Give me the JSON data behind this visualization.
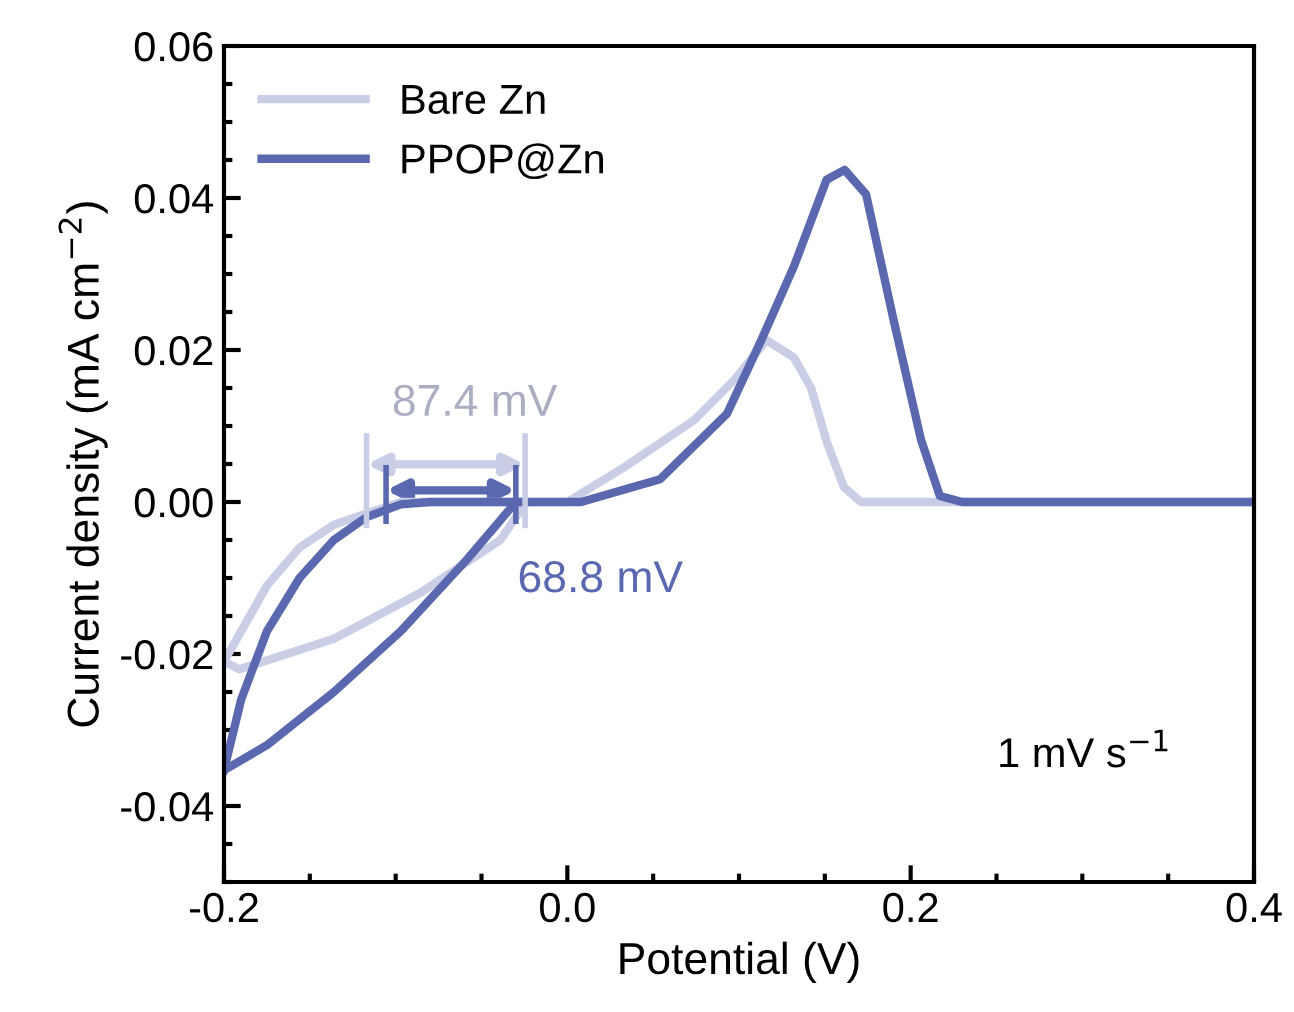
{
  "chart_data": {
    "type": "line",
    "xlabel": "Potential (V)",
    "ylabel": "Current density (mA cm$^{−2}$)",
    "xlim": [
      -0.2,
      0.4
    ],
    "xticks": [
      -0.2,
      {
        "value": 0,
        "label": "0.0"
      },
      0.2,
      0.4
    ],
    "ylim": [
      -0.05,
      0.06
    ],
    "yticks": [
      -0.04,
      -0.02,
      {
        "value": 0,
        "label": "0.00"
      },
      0.02,
      0.04,
      0.06
    ],
    "grid": false,
    "legend": "top left",
    "marker": "none",
    "line_style": "solid",
    "series": [
      {
        "name": "Bare Zn",
        "color": "#c9cde6",
        "x": [
          -0.2,
          -0.175,
          -0.156,
          -0.136,
          -0.117,
          -0.097,
          -0.05,
          0.0,
          0.034,
          0.074,
          0.097,
          0.116,
          0.132,
          0.142,
          0.151,
          0.161,
          0.171,
          0.25,
          0.4
        ],
        "values": [
          -0.021,
          -0.011,
          -0.006,
          -0.003,
          -0.0015,
          0.0,
          0.0,
          0.0,
          0.0047,
          0.0108,
          0.016,
          0.0213,
          0.019,
          0.015,
          0.008,
          0.002,
          0.0,
          0.0,
          0.0
        ]
      },
      {
        "color": "#c9cde6",
        "x": [
          -0.2,
          -0.191,
          -0.136,
          -0.086,
          -0.039,
          -0.024
        ],
        "values": [
          -0.021,
          -0.022,
          -0.018,
          -0.012,
          -0.005,
          0.0
        ]
      },
      {
        "name": "PPOP@Zn",
        "color": "#5a68b0",
        "x": [
          -0.2,
          -0.19,
          -0.175,
          -0.156,
          -0.136,
          -0.117,
          -0.097,
          -0.08,
          0.008,
          0.054,
          0.093,
          0.113,
          0.132,
          0.151,
          0.1615,
          0.174,
          0.19,
          0.206,
          0.217,
          0.23,
          0.4
        ],
        "values": [
          -0.0353,
          -0.026,
          -0.017,
          -0.01,
          -0.005,
          -0.002,
          -0.0003,
          0.0,
          0.0,
          0.003,
          0.0116,
          0.0213,
          0.031,
          0.0424,
          0.0437,
          0.0405,
          0.024,
          0.0082,
          0.0008,
          0.0,
          0.0
        ]
      },
      {
        "color": "#5a68b0",
        "x": [
          -0.2,
          -0.175,
          -0.136,
          -0.097,
          -0.059,
          -0.039,
          -0.03
        ],
        "values": [
          -0.0353,
          -0.032,
          -0.025,
          -0.017,
          -0.0077,
          -0.0024,
          0.0
        ]
      }
    ],
    "annotations": [
      {
        "text": "87.4 mV",
        "x": -0.117,
        "y": 0.0
      },
      {
        "text": "68.8 mV",
        "x": -0.03,
        "y": 0.0
      },
      "1 mV s$^{−1}$"
    ]
  }
}
